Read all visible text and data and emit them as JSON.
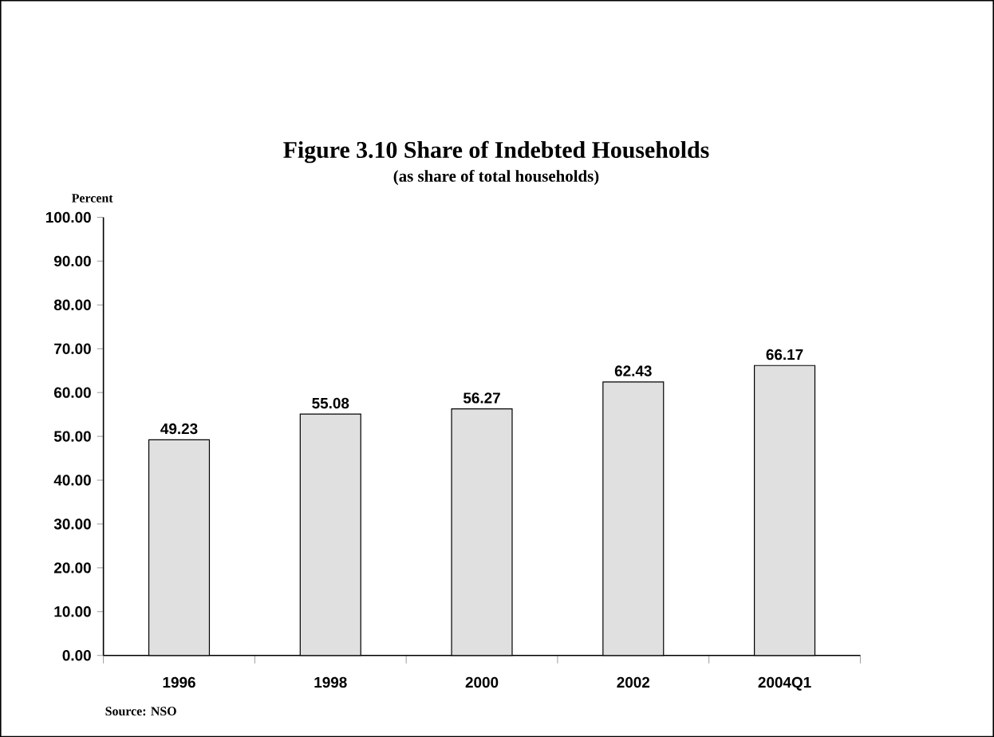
{
  "chart_data": {
    "type": "bar",
    "title": "Figure 3.10  Share of Indebted Households",
    "subtitle": "(as share of total households)",
    "ylabel": "Percent",
    "categories": [
      "1996",
      "1998",
      "2000",
      "2002",
      "2004Q1"
    ],
    "values": [
      49.23,
      55.08,
      56.27,
      62.43,
      66.17
    ],
    "color": "#e0e0e0",
    "data_labels": true,
    "ylim": [
      0,
      100
    ],
    "yticks": [
      {
        "value": 0,
        "label": "0.00"
      },
      {
        "value": 10,
        "label": "10.00"
      },
      {
        "value": 20,
        "label": "20.00"
      },
      {
        "value": 30,
        "label": "30.00"
      },
      {
        "value": 40,
        "label": "40.00"
      },
      {
        "value": 50,
        "label": "50.00"
      },
      {
        "value": 60,
        "label": "60.00"
      },
      {
        "value": 70,
        "label": "70.00"
      },
      {
        "value": 80,
        "label": "80.00"
      },
      {
        "value": 90,
        "label": "90.00"
      },
      {
        "value": 100,
        "label": "100.00"
      }
    ],
    "annotations": [
      "Source: NSO"
    ]
  }
}
